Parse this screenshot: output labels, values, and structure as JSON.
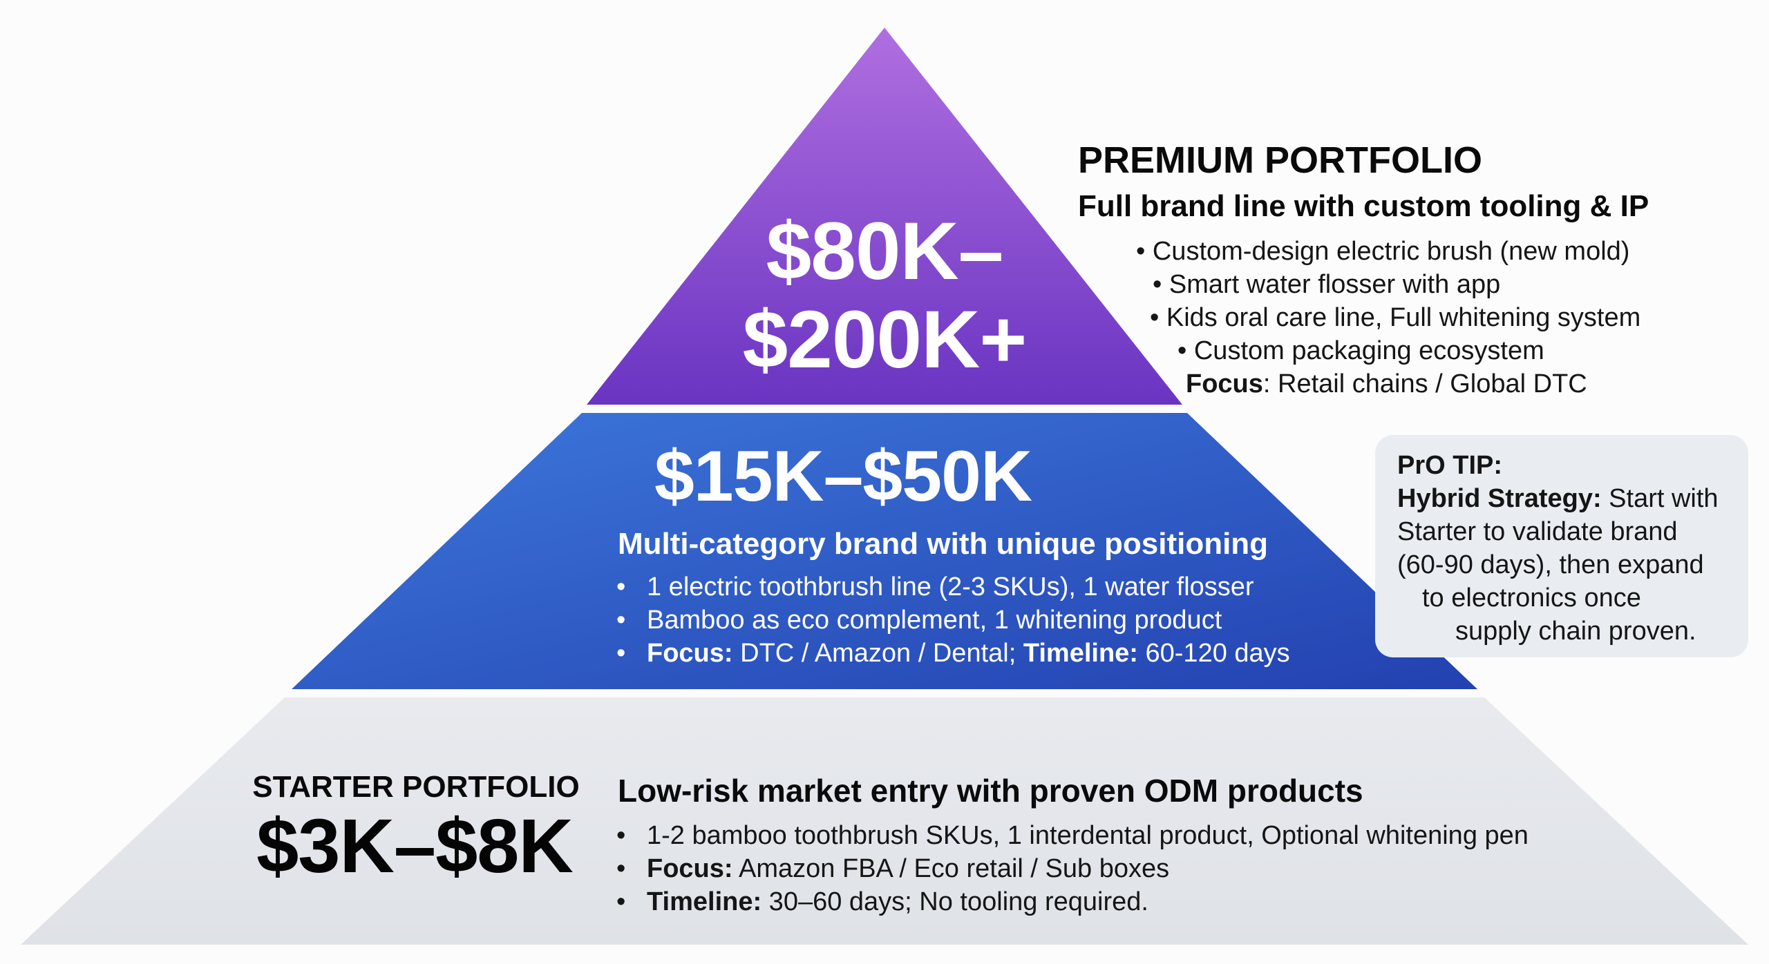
{
  "colors": {
    "top_tier_light": "#b06fe0",
    "top_tier_dark": "#6a34c2",
    "middle_tier_light": "#3d78dc",
    "middle_tier_dark": "#2341b0",
    "bottom_tier": "#e3e6eb",
    "tip_box": "#e9ecf1"
  },
  "premium": {
    "price_line1": "$80K–",
    "price_line2": "$200K+",
    "title": "PREMIUM PORTFOLIO",
    "subtitle": "Full brand line with custom tooling & IP",
    "items": [
      "• Custom-design electric brush (new mold)",
      "• Smart water flosser with app",
      "• Kids oral care line, Full whitening system",
      "• Custom packaging ecosystem"
    ],
    "focus_label": "Focus",
    "focus_text": ": Retail chains / Global DTC"
  },
  "middle": {
    "price": "$15K–$50K",
    "subtitle": "Multi-category brand with unique positioning",
    "item1": "1 electric toothbrush line (2-3 SKUs), 1 water flosser",
    "item2": "Bamboo as eco complement, 1 whitening product",
    "item3_label1": "Focus:",
    "item3_text1": " DTC / Amazon / Dental; ",
    "item3_label2": "Timeline:",
    "item3_text2": " 60-120 days"
  },
  "starter": {
    "label": "STARTER PORTFOLIO",
    "price": "$3K–$8K",
    "subtitle": "Low-risk market entry with proven ODM products",
    "item1": "1-2 bamboo toothbrush SKUs, 1 interdental product, Optional whitening pen",
    "item2_label": "Focus:",
    "item2_text": " Amazon FBA / Eco retail / Sub boxes",
    "item3_label": "Timeline:",
    "item3_text": " 30–60 days; No tooling required."
  },
  "tip": {
    "title": "PrO TIP:",
    "strategy_label": "Hybrid Strategy:",
    "line1_text": " Start with",
    "line2": "Starter to validate brand",
    "line3": "(60-90 days), then expand",
    "line4": "to electronics once",
    "line5": "supply chain proven."
  }
}
